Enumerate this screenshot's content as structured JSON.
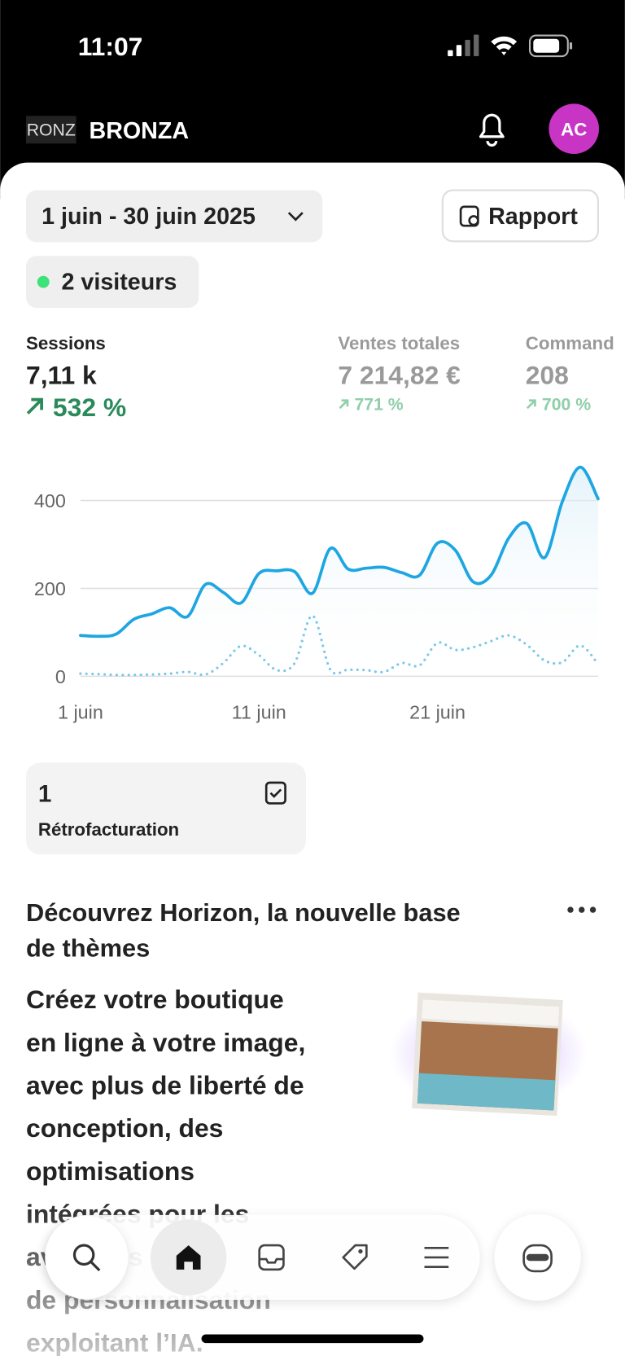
{
  "status_bar": {
    "time": "11:07"
  },
  "header": {
    "logo": "RONZ",
    "store_name": "BRONZA",
    "avatar": "AC"
  },
  "date_range": "1 juin - 30 juin 2025",
  "report_button": "Rapport",
  "visitors": "2 visiteurs",
  "metrics": [
    {
      "label": "Sessions",
      "value": "7,11 k",
      "change": "532 %"
    },
    {
      "label": "Ventes totales",
      "value": "7 214,82 €",
      "change": "771 %"
    },
    {
      "label": "Command",
      "value": "208",
      "change": "700 %"
    }
  ],
  "chart_data": {
    "type": "line",
    "x": [
      1,
      2,
      3,
      4,
      5,
      6,
      7,
      8,
      9,
      10,
      11,
      12,
      13,
      14,
      15,
      16,
      17,
      18,
      19,
      20,
      21,
      22,
      23,
      24,
      25,
      26,
      27,
      28,
      29,
      30
    ],
    "series": [
      {
        "color": "#1ea6e3",
        "style": "solid",
        "values": [
          93,
          91,
          96,
          130,
          142,
          156,
          136,
          209,
          191,
          167,
          234,
          240,
          238,
          189,
          291,
          244,
          246,
          248,
          236,
          230,
          303,
          287,
          215,
          230,
          315,
          348,
          270,
          398,
          476,
          404
        ]
      },
      {
        "color": "#7cc8ea",
        "style": "dotted",
        "values": [
          6,
          5,
          3,
          3,
          4,
          6,
          10,
          4,
          30,
          69,
          48,
          14,
          30,
          138,
          15,
          15,
          14,
          10,
          30,
          25,
          76,
          60,
          66,
          80,
          93,
          72,
          36,
          32,
          70,
          28
        ]
      }
    ],
    "xlim": [
      1,
      30
    ],
    "xticks": [
      {
        "value": 1,
        "label": "1 juin"
      },
      {
        "value": 11,
        "label": "11 juin"
      },
      {
        "value": 21,
        "label": "21 juin"
      }
    ],
    "ylim": [
      0,
      500
    ],
    "yticks": [
      0,
      200,
      400
    ],
    "grid": true
  },
  "chargeback": {
    "count": "1",
    "label": "Rétrofacturation"
  },
  "promo": {
    "title_lines": [
      "Découvrez Horizon, la nouvelle base",
      "de thèmes"
    ],
    "body_lines": [
      "Créez votre boutique",
      "en ligne à votre image,",
      "avec plus de liberté de",
      "conception, des",
      "optimisations",
      "intégrées pour les",
      "avancées pour",
      "de personnalisation",
      "exploitant l’IA."
    ]
  }
}
